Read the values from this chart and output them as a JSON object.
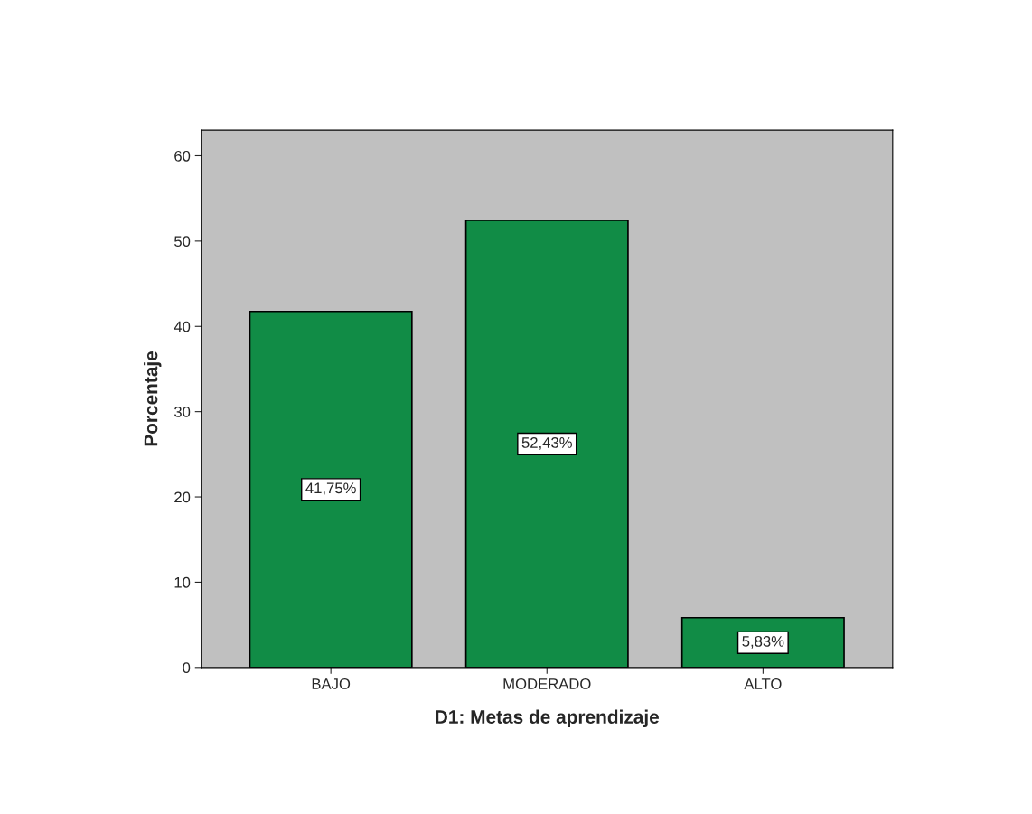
{
  "chart_data": {
    "type": "bar",
    "xlabel": "D1: Metas de aprendizaje",
    "ylabel": "Porcentaje",
    "categories": [
      "BAJO",
      "MODERADO",
      "ALTO"
    ],
    "values": [
      41.75,
      52.43,
      5.83
    ],
    "value_labels": [
      "41,75%",
      "52,43%",
      "5,83%"
    ],
    "color": "#118c46",
    "ylim": [
      0,
      63
    ],
    "yticks": [
      0,
      10,
      20,
      30,
      40,
      50,
      60
    ],
    "grid": false,
    "legend": false
  }
}
